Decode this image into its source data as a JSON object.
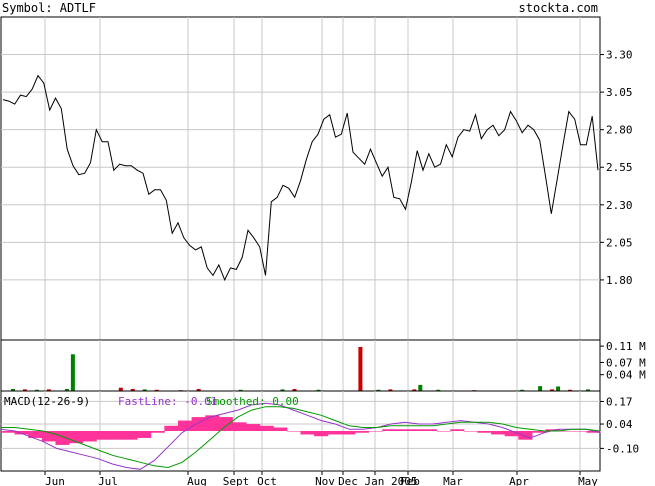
{
  "header": {
    "symbol_text": "Symbol: ADTLF",
    "site_text": "stockta.com"
  },
  "colors": {
    "price_line": "#000000",
    "grid": "#c8c8c8",
    "volume_up": "#008000",
    "volume_down": "#cc0000",
    "macd_fast": "#9933cc",
    "macd_smoothed": "#009900",
    "macd_histogram": "#ff3399"
  },
  "chart_data": [
    {
      "type": "line",
      "name": "price",
      "yticks": [
        "3.30",
        "3.05",
        "2.80",
        "2.55",
        "2.30",
        "2.05",
        "1.80"
      ],
      "ylim": [
        1.4,
        3.55
      ],
      "grid": true,
      "x_labels": [
        "Jun",
        "Jul",
        "Aug",
        "Sept",
        "Oct",
        "Nov",
        "Dec",
        "Jan 2005",
        "Feb",
        "Mar",
        "Apr",
        "May"
      ],
      "values": [
        3.0,
        2.99,
        2.97,
        3.03,
        3.02,
        3.07,
        3.16,
        3.11,
        2.93,
        3.01,
        2.94,
        2.67,
        2.56,
        2.5,
        2.51,
        2.58,
        2.8,
        2.72,
        2.72,
        2.53,
        2.57,
        2.56,
        2.56,
        2.53,
        2.51,
        2.37,
        2.4,
        2.4,
        2.33,
        2.11,
        2.18,
        2.08,
        2.03,
        2.0,
        2.02,
        1.88,
        1.83,
        1.9,
        1.8,
        1.88,
        1.87,
        1.95,
        2.13,
        2.08,
        2.02,
        1.83,
        2.32,
        2.35,
        2.43,
        2.41,
        2.35,
        2.46,
        2.6,
        2.72,
        2.77,
        2.87,
        2.9,
        2.75,
        2.77,
        2.91,
        2.65,
        2.61,
        2.57,
        2.67,
        2.58,
        2.49,
        2.55,
        2.35,
        2.34,
        2.27,
        2.45,
        2.66,
        2.53,
        2.64,
        2.55,
        2.57,
        2.7,
        2.62,
        2.75,
        2.8,
        2.79,
        2.9,
        2.74,
        2.8,
        2.83,
        2.76,
        2.8,
        2.92,
        2.86,
        2.78,
        2.83,
        2.8,
        2.73,
        2.49,
        2.24,
        2.47,
        2.7,
        2.92,
        2.87,
        2.7,
        2.7,
        2.89,
        2.53
      ]
    },
    {
      "type": "bar",
      "name": "volume",
      "yticks": [
        "0.11 M",
        "0.07 M",
        "0.04 M"
      ],
      "ylim": [
        0,
        0.125
      ],
      "bars": [
        {
          "at": 0.02,
          "value": 0.005,
          "up": true
        },
        {
          "at": 0.04,
          "value": 0.004,
          "up": false
        },
        {
          "at": 0.06,
          "value": 0.003,
          "up": true
        },
        {
          "at": 0.08,
          "value": 0.004,
          "up": false
        },
        {
          "at": 0.11,
          "value": 0.005,
          "up": true
        },
        {
          "at": 0.12,
          "value": 0.09,
          "up": true
        },
        {
          "at": 0.2,
          "value": 0.008,
          "up": false
        },
        {
          "at": 0.22,
          "value": 0.005,
          "up": false
        },
        {
          "at": 0.24,
          "value": 0.004,
          "up": true
        },
        {
          "at": 0.26,
          "value": 0.003,
          "up": false
        },
        {
          "at": 0.3,
          "value": 0.002,
          "up": false
        },
        {
          "at": 0.33,
          "value": 0.005,
          "up": false
        },
        {
          "at": 0.4,
          "value": 0.003,
          "up": true
        },
        {
          "at": 0.47,
          "value": 0.004,
          "up": true
        },
        {
          "at": 0.49,
          "value": 0.005,
          "up": false
        },
        {
          "at": 0.53,
          "value": 0.003,
          "up": true
        },
        {
          "at": 0.6,
          "value": 0.108,
          "up": false
        },
        {
          "at": 0.63,
          "value": 0.003,
          "up": true
        },
        {
          "at": 0.65,
          "value": 0.004,
          "up": false
        },
        {
          "at": 0.69,
          "value": 0.004,
          "up": false
        },
        {
          "at": 0.7,
          "value": 0.015,
          "up": true
        },
        {
          "at": 0.73,
          "value": 0.003,
          "up": true
        },
        {
          "at": 0.79,
          "value": 0.002,
          "up": false
        },
        {
          "at": 0.87,
          "value": 0.003,
          "up": true
        },
        {
          "at": 0.9,
          "value": 0.012,
          "up": true
        },
        {
          "at": 0.92,
          "value": 0.004,
          "up": false
        },
        {
          "at": 0.93,
          "value": 0.011,
          "up": true
        },
        {
          "at": 0.95,
          "value": 0.003,
          "up": false
        },
        {
          "at": 0.98,
          "value": 0.004,
          "up": true
        }
      ]
    },
    {
      "type": "line",
      "name": "macd",
      "title": "MACD(12-26-9)",
      "legend": {
        "fast": "FastLine: -0.01",
        "smoothed": "Smoothed: 0.00"
      },
      "yticks": [
        "0.17",
        "0.04",
        "-0.10"
      ],
      "ylim": [
        -0.23,
        0.23
      ],
      "fast": [
        0.01,
        0.0,
        -0.03,
        -0.06,
        -0.1,
        -0.12,
        -0.14,
        -0.16,
        -0.19,
        -0.21,
        -0.22,
        -0.17,
        -0.09,
        -0.01,
        0.04,
        0.08,
        0.1,
        0.12,
        0.15,
        0.16,
        0.15,
        0.12,
        0.09,
        0.06,
        0.04,
        0.01,
        0.01,
        0.02,
        0.04,
        0.05,
        0.04,
        0.04,
        0.05,
        0.06,
        0.05,
        0.04,
        0.02,
        -0.01,
        -0.04,
        -0.01,
        0.01,
        0.01,
        0.01,
        -0.01
      ],
      "smoothed": [
        0.02,
        0.02,
        0.01,
        0.0,
        -0.02,
        -0.05,
        -0.08,
        -0.11,
        -0.14,
        -0.16,
        -0.18,
        -0.2,
        -0.21,
        -0.18,
        -0.12,
        -0.05,
        0.02,
        0.08,
        0.12,
        0.14,
        0.14,
        0.13,
        0.11,
        0.09,
        0.06,
        0.03,
        0.02,
        0.02,
        0.03,
        0.03,
        0.03,
        0.03,
        0.04,
        0.05,
        0.05,
        0.05,
        0.04,
        0.02,
        0.01,
        0.0,
        0.0,
        0.01,
        0.01,
        0.0
      ],
      "histogram": [
        -0.01,
        -0.02,
        -0.04,
        -0.06,
        -0.08,
        -0.07,
        -0.06,
        -0.05,
        -0.05,
        -0.05,
        -0.04,
        -0.01,
        0.03,
        0.06,
        0.08,
        0.09,
        0.08,
        0.05,
        0.04,
        0.03,
        0.02,
        0.0,
        -0.02,
        -0.03,
        -0.02,
        -0.02,
        -0.01,
        0.0,
        0.01,
        0.01,
        0.01,
        0.01,
        0.0,
        0.01,
        0.0,
        -0.01,
        -0.02,
        -0.03,
        -0.05,
        -0.01,
        0.01,
        0.0,
        0.0,
        -0.01
      ]
    }
  ]
}
